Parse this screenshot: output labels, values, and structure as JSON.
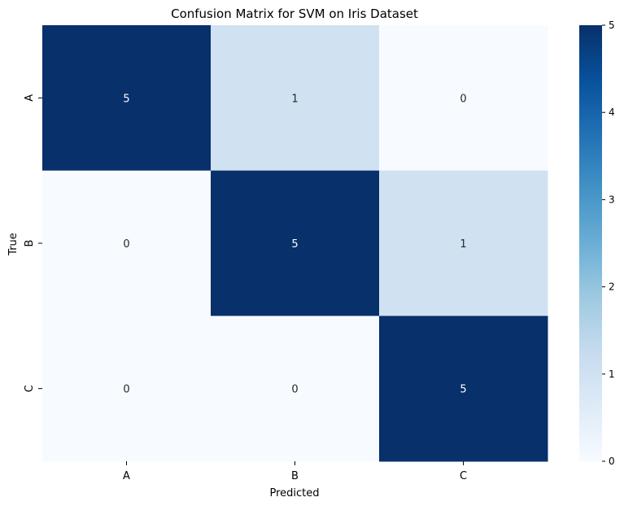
{
  "chart_data": {
    "type": "heatmap",
    "title": "Confusion Matrix for SVM on Iris Dataset",
    "xlabel": "Predicted",
    "ylabel": "True",
    "x_categories": [
      "A",
      "B",
      "C"
    ],
    "y_categories": [
      "A",
      "B",
      "C"
    ],
    "values": [
      [
        5,
        1,
        0
      ],
      [
        0,
        5,
        1
      ],
      [
        0,
        0,
        5
      ]
    ],
    "annotations": true,
    "colormap": "Blues",
    "colorbar": {
      "range": [
        0,
        5
      ],
      "ticks": [
        0,
        1,
        2,
        3,
        4,
        5
      ]
    }
  }
}
